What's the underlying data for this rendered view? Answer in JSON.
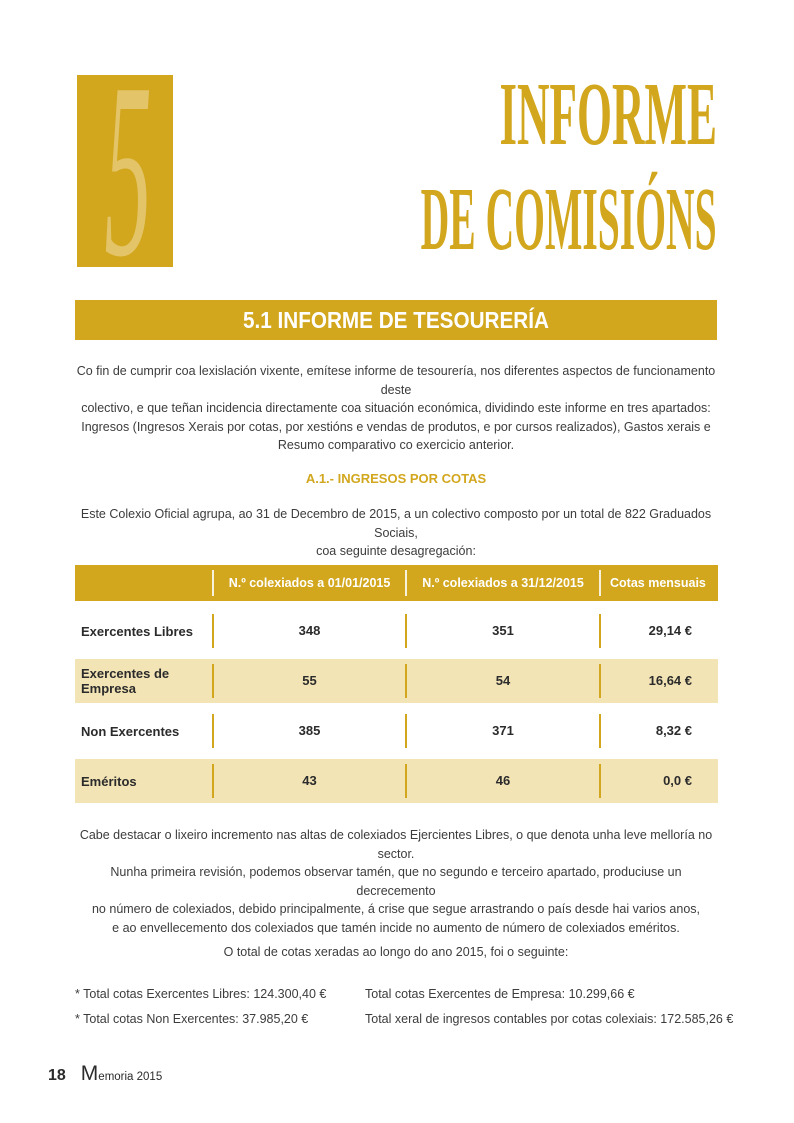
{
  "colors": {
    "gold": "#d2a71e",
    "gold_light": "#e3c468",
    "beige": "#f3e4b6",
    "text_dark": "#3c3c3c",
    "white": "#ffffff"
  },
  "chapter": {
    "number": "5",
    "title_line1": "INFORME",
    "title_line2": "DE COMISIÓNS"
  },
  "section": {
    "banner": "5.1 INFORME DE TESOURERÍA"
  },
  "intro": {
    "lines": [
      "Co fin de cumprir coa lexislación vixente, emítese informe de tesourería, nos diferentes aspectos de funcionamento deste",
      "colectivo, e que teñan incidencia directamente coa situación económica, dividindo este informe en tres apartados:",
      "Ingresos (Ingresos Xerais por cotas, por xestións e vendas de produtos, e por cursos realizados), Gastos xerais e",
      "Resumo comparativo co exercicio anterior."
    ]
  },
  "subsection": {
    "heading": "A.1.- INGRESOS POR COTAS"
  },
  "collective": {
    "lines": [
      "Este Colexio Oficial agrupa, ao 31 de Decembro de 2015, a un colectivo composto por un total de 822 Graduados Sociais,",
      "coa seguinte desagregación:"
    ]
  },
  "table": {
    "headers": [
      "",
      "N.º colexiados a 01/01/2015",
      "N.º colexiados a 31/12/2015",
      "Cotas mensuais"
    ],
    "rows": [
      {
        "label": "Exercentes Libres",
        "n_inicio": "348",
        "n_fin": "351",
        "cota": "29,14 €"
      },
      {
        "label": "Exercentes de Empresa",
        "n_inicio": "55",
        "n_fin": "54",
        "cota": "16,64 €"
      },
      {
        "label": "Non Exercentes",
        "n_inicio": "385",
        "n_fin": "371",
        "cota": "8,32 €"
      },
      {
        "label": "Eméritos",
        "n_inicio": "43",
        "n_fin": "46",
        "cota": "0,0 €"
      }
    ]
  },
  "analysis": {
    "lines": [
      "Cabe destacar o lixeiro incremento nas altas de colexiados Ejercientes Libres, o que denota unha leve melloría no sector.",
      "Nunha primeira revisión, podemos observar tamén, que no segundo e terceiro apartado, produciuse un decrecemento",
      "no número de colexiados, debido principalmente, á crise que segue arrastrando o país desde hai varios anos,",
      "e ao envellecemento dos colexiados que tamén incide no aumento de número de colexiados eméritos."
    ]
  },
  "totals": {
    "intro": "O total de cotas xeradas ao longo do ano 2015, foi o seguinte:",
    "left": [
      "* Total cotas Exercentes Libres: 124.300,40 €",
      "* Total cotas Non Exercentes: 37.985,20 €"
    ],
    "right": [
      "Total cotas Exercentes de Empresa: 10.299,66 €",
      "Total xeral de ingresos contables por cotas colexiais: 172.585,26 €"
    ]
  },
  "footer": {
    "page_number": "18",
    "brand_initial": "M",
    "brand_rest": "emoria 2015"
  }
}
